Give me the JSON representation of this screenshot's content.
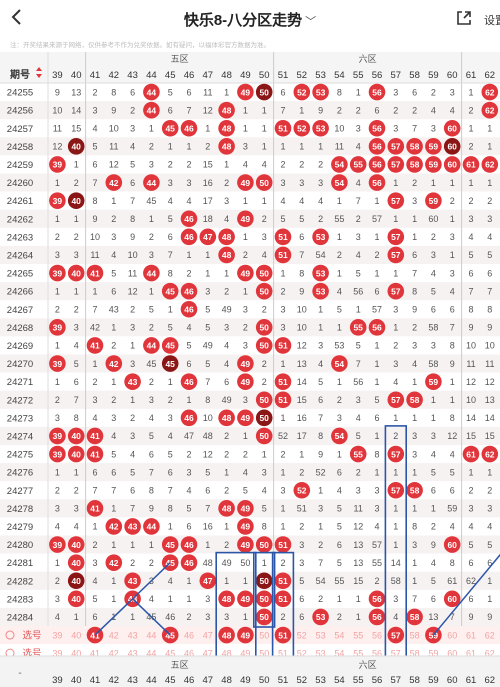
{
  "header": {
    "title": "快乐8-八分区走势",
    "setting_label": "设置"
  },
  "notice": "注：开奖结果来源于网络，仅供参考不作为兑奖依据。如有疑问，以福体彩官方数据为准。",
  "table": {
    "issue_header": "期号",
    "zones": [
      "五区",
      "六区"
    ],
    "columns": [
      "39",
      "40",
      "41",
      "42",
      "43",
      "44",
      "45",
      "46",
      "47",
      "48",
      "49",
      "50",
      "51",
      "52",
      "53",
      "54",
      "55",
      "56",
      "57",
      "58",
      "59",
      "60",
      "61",
      "62"
    ],
    "rows": [
      {
        "issue": "24255",
        "cells": [
          "9",
          "13",
          "2",
          "8",
          "6",
          "44",
          "5",
          "6",
          "11",
          "1",
          "49",
          "50",
          "6",
          "52",
          "53",
          "8",
          "1",
          "56",
          "3",
          "6",
          "2",
          "3",
          "1",
          "62"
        ]
      },
      {
        "issue": "24256",
        "cells": [
          "10",
          "14",
          "3",
          "9",
          "2",
          "44",
          "6",
          "7",
          "12",
          "48",
          "1",
          "1",
          "7",
          "1",
          "9",
          "2",
          "2",
          "6",
          "2",
          "2",
          "4",
          "4",
          "2",
          "62"
        ]
      },
      {
        "issue": "24257",
        "cells": [
          "11",
          "15",
          "4",
          "10",
          "3",
          "1",
          "45",
          "46",
          "1",
          "48",
          "1",
          "1",
          "51",
          "52",
          "53",
          "10",
          "3",
          "56",
          "3",
          "7",
          "3",
          "60",
          "1",
          "1"
        ]
      },
      {
        "issue": "24258",
        "cells": [
          "12",
          "40",
          "5",
          "11",
          "4",
          "2",
          "1",
          "1",
          "2",
          "48",
          "3",
          "1",
          "1",
          "1",
          "1",
          "11",
          "4",
          "56",
          "57",
          "58",
          "59",
          "60",
          "2",
          "1"
        ]
      },
      {
        "issue": "24259",
        "cells": [
          "39",
          "1",
          "6",
          "12",
          "5",
          "3",
          "2",
          "2",
          "15",
          "1",
          "4",
          "4",
          "2",
          "2",
          "2",
          "54",
          "55",
          "56",
          "57",
          "58",
          "59",
          "60",
          "61",
          "62"
        ]
      },
      {
        "issue": "24260",
        "cells": [
          "1",
          "2",
          "7",
          "42",
          "6",
          "44",
          "3",
          "3",
          "16",
          "2",
          "49",
          "50",
          "3",
          "3",
          "3",
          "54",
          "4",
          "56",
          "1",
          "2",
          "1",
          "1",
          "1",
          "1"
        ]
      },
      {
        "issue": "24261",
        "cells": [
          "39",
          "40",
          "8",
          "1",
          "7",
          "45",
          "4",
          "4",
          "17",
          "3",
          "1",
          "1",
          "4",
          "4",
          "4",
          "1",
          "7",
          "1",
          "57",
          "3",
          "59",
          "2",
          "2",
          "2"
        ]
      },
      {
        "issue": "24262",
        "cells": [
          "1",
          "1",
          "9",
          "2",
          "8",
          "1",
          "5",
          "46",
          "18",
          "4",
          "49",
          "2",
          "5",
          "5",
          "2",
          "55",
          "2",
          "57",
          "1",
          "1",
          "60",
          "1",
          "3",
          "3"
        ]
      },
      {
        "issue": "24263",
        "cells": [
          "2",
          "2",
          "10",
          "3",
          "9",
          "2",
          "6",
          "46",
          "47",
          "48",
          "1",
          "3",
          "51",
          "6",
          "53",
          "1",
          "3",
          "1",
          "57",
          "1",
          "2",
          "3",
          "4",
          "4"
        ]
      },
      {
        "issue": "24264",
        "cells": [
          "3",
          "3",
          "11",
          "4",
          "10",
          "3",
          "7",
          "1",
          "1",
          "48",
          "2",
          "4",
          "51",
          "7",
          "54",
          "2",
          "4",
          "2",
          "57",
          "6",
          "3",
          "1",
          "5",
          "5"
        ]
      },
      {
        "issue": "24265",
        "cells": [
          "39",
          "40",
          "41",
          "5",
          "11",
          "44",
          "8",
          "2",
          "1",
          "1",
          "49",
          "50",
          "1",
          "8",
          "53",
          "1",
          "5",
          "1",
          "1",
          "7",
          "4",
          "3",
          "6",
          "6"
        ]
      },
      {
        "issue": "24266",
        "cells": [
          "1",
          "1",
          "1",
          "6",
          "12",
          "1",
          "45",
          "46",
          "3",
          "2",
          "1",
          "50",
          "2",
          "9",
          "53",
          "4",
          "56",
          "6",
          "57",
          "8",
          "5",
          "4",
          "7",
          "7"
        ]
      },
      {
        "issue": "24267",
        "cells": [
          "2",
          "2",
          "7",
          "43",
          "2",
          "5",
          "1",
          "46",
          "5",
          "49",
          "3",
          "2",
          "3",
          "10",
          "1",
          "5",
          "1",
          "57",
          "3",
          "9",
          "6",
          "6",
          "8",
          "8"
        ]
      },
      {
        "issue": "24268",
        "cells": [
          "39",
          "3",
          "42",
          "1",
          "3",
          "2",
          "5",
          "4",
          "5",
          "3",
          "2",
          "50",
          "3",
          "10",
          "1",
          "1",
          "55",
          "56",
          "1",
          "2",
          "58",
          "7",
          "9",
          "9"
        ]
      },
      {
        "issue": "24269",
        "cells": [
          "1",
          "4",
          "41",
          "2",
          "1",
          "44",
          "45",
          "5",
          "49",
          "4",
          "3",
          "50",
          "51",
          "12",
          "3",
          "53",
          "5",
          "1",
          "2",
          "3",
          "3",
          "8",
          "10",
          "10"
        ]
      },
      {
        "issue": "24270",
        "cells": [
          "39",
          "5",
          "1",
          "42",
          "3",
          "45",
          "45",
          "6",
          "5",
          "4",
          "49",
          "2",
          "1",
          "13",
          "4",
          "54",
          "7",
          "1",
          "3",
          "4",
          "58",
          "9",
          "11",
          "11"
        ]
      },
      {
        "issue": "24271",
        "cells": [
          "1",
          "6",
          "2",
          "1",
          "43",
          "2",
          "1",
          "46",
          "7",
          "6",
          "49",
          "2",
          "51",
          "14",
          "5",
          "1",
          "56",
          "1",
          "4",
          "1",
          "59",
          "1",
          "12",
          "12"
        ]
      },
      {
        "issue": "24272",
        "cells": [
          "2",
          "7",
          "3",
          "2",
          "1",
          "3",
          "2",
          "1",
          "8",
          "49",
          "3",
          "50",
          "51",
          "15",
          "6",
          "2",
          "3",
          "5",
          "57",
          "58",
          "1",
          "1",
          "10",
          "13"
        ]
      },
      {
        "issue": "24273",
        "cells": [
          "3",
          "8",
          "4",
          "3",
          "2",
          "4",
          "3",
          "46",
          "10",
          "48",
          "49",
          "50",
          "1",
          "16",
          "7",
          "3",
          "4",
          "6",
          "1",
          "1",
          "1",
          "8",
          "14",
          "14"
        ]
      },
      {
        "issue": "24274",
        "cells": [
          "39",
          "40",
          "41",
          "4",
          "3",
          "5",
          "4",
          "47",
          "48",
          "2",
          "1",
          "50",
          "52",
          "17",
          "8",
          "54",
          "5",
          "1",
          "2",
          "3",
          "3",
          "12",
          "15",
          "15"
        ]
      },
      {
        "issue": "24275",
        "cells": [
          "39",
          "40",
          "41",
          "5",
          "4",
          "6",
          "5",
          "2",
          "12",
          "2",
          "2",
          "1",
          "2",
          "1",
          "9",
          "1",
          "55",
          "8",
          "57",
          "3",
          "4",
          "4",
          "61",
          "62"
        ]
      },
      {
        "issue": "24276",
        "cells": [
          "1",
          "1",
          "6",
          "6",
          "5",
          "7",
          "6",
          "3",
          "5",
          "1",
          "4",
          "3",
          "1",
          "2",
          "52",
          "6",
          "2",
          "1",
          "1",
          "1",
          "5",
          "5",
          "1",
          "1"
        ]
      },
      {
        "issue": "24277",
        "cells": [
          "2",
          "2",
          "7",
          "7",
          "6",
          "8",
          "7",
          "4",
          "6",
          "2",
          "5",
          "4",
          "3",
          "52",
          "1",
          "4",
          "3",
          "3",
          "57",
          "58",
          "6",
          "6",
          "2",
          "2"
        ]
      },
      {
        "issue": "24278",
        "cells": [
          "3",
          "3",
          "41",
          "1",
          "7",
          "9",
          "8",
          "5",
          "7",
          "48",
          "49",
          "5",
          "1",
          "51",
          "3",
          "5",
          "11",
          "3",
          "1",
          "1",
          "1",
          "59",
          "3",
          "3"
        ]
      },
      {
        "issue": "24279",
        "cells": [
          "4",
          "4",
          "1",
          "42",
          "43",
          "44",
          "1",
          "6",
          "16",
          "1",
          "49",
          "8",
          "1",
          "2",
          "1",
          "5",
          "12",
          "4",
          "1",
          "8",
          "2",
          "4",
          "4",
          "4"
        ]
      },
      {
        "issue": "24280",
        "cells": [
          "39",
          "40",
          "2",
          "1",
          "1",
          "1",
          "45",
          "46",
          "1",
          "2",
          "49",
          "50",
          "51",
          "3",
          "2",
          "6",
          "13",
          "57",
          "1",
          "3",
          "9",
          "60",
          "5",
          "5"
        ]
      },
      {
        "issue": "24281",
        "cells": [
          "1",
          "40",
          "3",
          "42",
          "2",
          "2",
          "45",
          "46",
          "48",
          "49",
          "50",
          "1",
          "2",
          "3",
          "7",
          "5",
          "13",
          "55",
          "14",
          "1",
          "4",
          "8",
          "6",
          "6"
        ]
      },
      {
        "issue": "24282",
        "cells": [
          "2",
          "40",
          "4",
          "1",
          "43",
          "3",
          "4",
          "1",
          "47",
          "1",
          "1",
          "50",
          "51",
          "5",
          "54",
          "55",
          "15",
          "2",
          "58",
          "1",
          "5",
          "61",
          "62",
          "1"
        ]
      },
      {
        "issue": "24283",
        "cells": [
          "3",
          "40",
          "5",
          "1",
          "43",
          "4",
          "1",
          "1",
          "3",
          "48",
          "49",
          "50",
          "51",
          "6",
          "2",
          "1",
          "1",
          "56",
          "3",
          "7",
          "6",
          "60",
          "6",
          "1"
        ]
      },
      {
        "issue": "24284",
        "cells": [
          "4",
          "1",
          "6",
          "1",
          "1",
          "45",
          "46",
          "2",
          "3",
          "3",
          "1",
          "50",
          "2",
          "6",
          "53",
          "2",
          "1",
          "56",
          "4",
          "58",
          "13",
          "7",
          "9",
          "9"
        ]
      }
    ],
    "pick_label": "选号",
    "pick_rows": [
      {
        "label": "选号",
        "selected": [
          "41",
          "45",
          "48",
          "49",
          "51",
          "57",
          "59"
        ]
      },
      {
        "label": "选号",
        "selected": []
      }
    ]
  },
  "colors": {
    "ball_red": "#e0353b",
    "ball_dark": "#8b1616",
    "text_num": "#555555",
    "stripe": "#f7f2f2",
    "zone_line": "#dddddd",
    "accent_blue": "#2b56a8",
    "pick_text": "#f2a3a3"
  },
  "icons": [
    "back-arrow-icon",
    "chevron-down-icon",
    "share-icon",
    "sort-arrows-icon",
    "radio-circle-icon"
  ]
}
